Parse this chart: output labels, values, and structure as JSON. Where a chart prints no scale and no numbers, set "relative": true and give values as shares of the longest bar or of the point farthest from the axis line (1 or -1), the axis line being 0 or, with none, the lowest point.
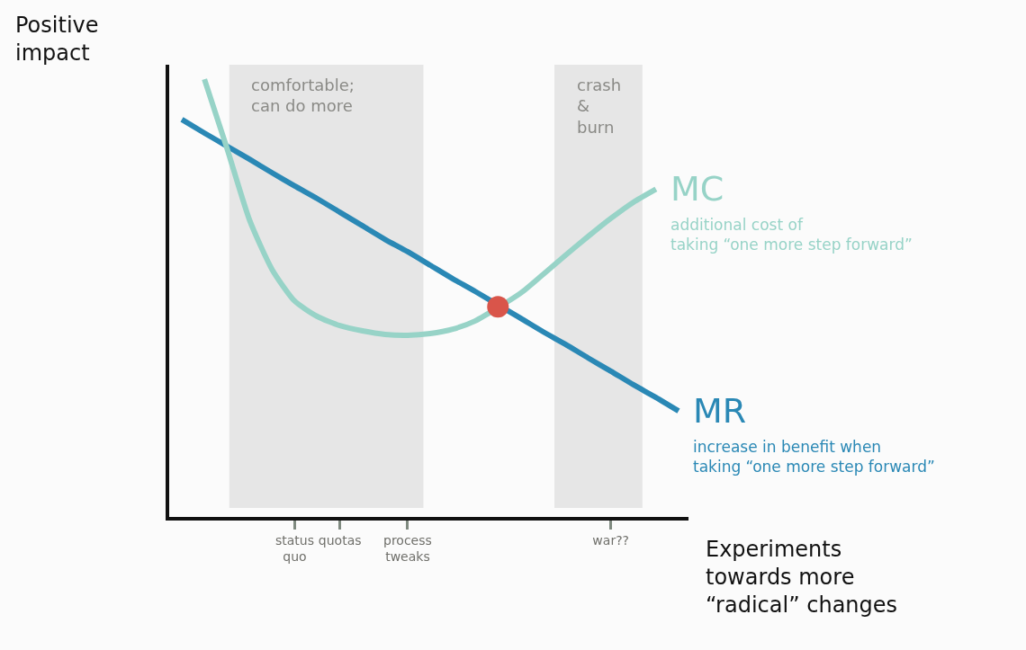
{
  "chart_data": {
    "type": "line",
    "relative": true,
    "ylabel": "Positive impact",
    "xlabel": "Experiments towards more “radical” changes",
    "categories": [
      null,
      null,
      null,
      null,
      null,
      "status quo",
      null,
      "quotas",
      null,
      null,
      "process tweaks",
      null,
      null,
      null,
      null,
      null,
      null,
      null,
      null,
      "war??",
      null,
      null,
      null
    ],
    "series": [
      {
        "name": "MR",
        "color": "#2a88b5",
        "values": [
          0.908,
          0.877,
          0.847,
          0.817,
          0.786,
          0.756,
          0.727,
          0.696,
          0.665,
          0.634,
          0.606,
          0.575,
          0.544,
          0.515,
          null,
          0.454,
          0.423,
          0.394,
          0.363,
          0.333,
          0.302,
          0.273,
          0.242
        ]
      },
      {
        "name": "MC",
        "color": "#97d3c7",
        "values": [
          null,
          1,
          0.842,
          0.678,
          0.565,
          0.493,
          0.458,
          0.437,
          0.425,
          0.417,
          0.415,
          0.419,
          0.429,
          0.448,
          null,
          0.511,
          0.554,
          0.598,
          0.641,
          0.682,
          0.719,
          0.749,
          null
        ]
      },
      {
        "type": "scatter",
        "color": "#d9554a",
        "values": [
          null,
          null,
          null,
          null,
          null,
          null,
          null,
          null,
          null,
          null,
          null,
          null,
          null,
          null,
          0.48,
          null,
          null,
          null,
          null,
          null,
          null,
          null,
          null
        ]
      }
    ],
    "annotations": [
      "increase in benefit when\ntaking “one more step forward”",
      "additional cost of\ntaking “one more step forward”",
      "comfortable;\ncan do more",
      "crash\n&\nburn"
    ]
  }
}
